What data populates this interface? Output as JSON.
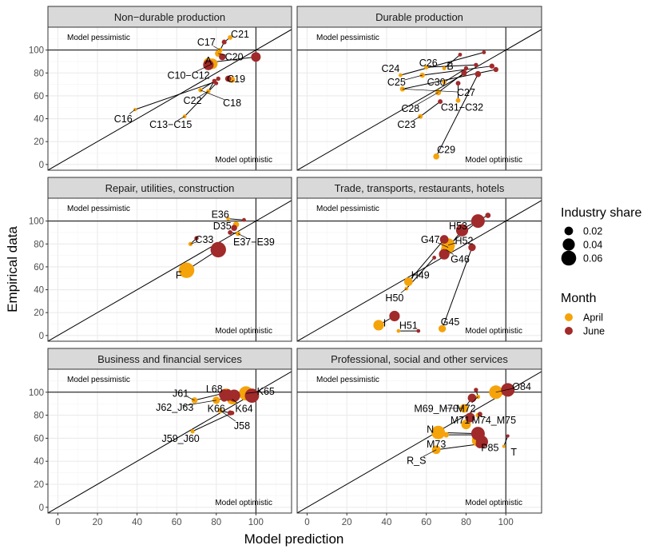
{
  "chart_data": {
    "type": "scatter",
    "subtype": "faceted dumbbell scatter (April vs June)",
    "xlabel": "Model prediction",
    "ylabel": "Empirical data",
    "xlim": [
      -5,
      118
    ],
    "ylim": [
      -5,
      120
    ],
    "xticks": [
      0,
      20,
      40,
      60,
      80,
      100
    ],
    "yticks": [
      0,
      20,
      40,
      60,
      80,
      100
    ],
    "reference_lines": {
      "diagonal": "y = x",
      "horizontal": 100,
      "vertical": 100
    },
    "region_labels": {
      "pessimistic": "Model pessimistic",
      "optimistic": "Model optimistic"
    },
    "legend": {
      "size_title": "Industry share",
      "size_entries": [
        {
          "label": "0.02",
          "share": 0.02
        },
        {
          "label": "0.04",
          "share": 0.04
        },
        {
          "label": "0.06",
          "share": 0.06
        }
      ],
      "color_title": "Month",
      "color_entries": [
        {
          "label": "April",
          "color": "#f5a30a"
        },
        {
          "label": "June",
          "color": "#a12a2a"
        }
      ]
    },
    "colors": {
      "april": "#f5a30a",
      "june": "#a12a2a",
      "strip": "#d9d9d9",
      "grid_major": "#ebebeb",
      "grid_minor": "#f5f5f5"
    },
    "facets": [
      {
        "title": "Non−durable production",
        "points": [
          {
            "label": "C21",
            "april": [
              87,
              111
            ],
            "june": [
              84,
              107
            ],
            "share": 0.006,
            "lx": 92,
            "ly": 114
          },
          {
            "label": "C17",
            "april": [
              82,
              100
            ],
            "june": [
              84,
              107
            ],
            "share": 0.006,
            "lx": 75,
            "ly": 107
          },
          {
            "label": "C20",
            "april": [
              81,
              97
            ],
            "june": [
              83,
              94
            ],
            "share": 0.012,
            "lx": 89,
            "ly": 94
          },
          {
            "label": "A",
            "april": [
              76,
              89
            ],
            "june": [
              100,
              94
            ],
            "share": 0.025,
            "lx": 76,
            "ly": 91
          },
          {
            "label": "C10−C12",
            "april": [
              78,
              88
            ],
            "june": [
              76,
              87
            ],
            "share": 0.03,
            "lx": 66,
            "ly": 78
          },
          {
            "label": "C19",
            "april": [
              88,
              74
            ],
            "june": [
              86,
              75
            ],
            "share": 0.01,
            "lx": 90,
            "ly": 75
          },
          {
            "label": "C22",
            "april": [
              76,
              64
            ],
            "june": [
              79,
              73
            ],
            "share": 0.005,
            "lx": 68,
            "ly": 56
          },
          {
            "label": "C18",
            "april": [
              72,
              65
            ],
            "june": [
              81,
              75
            ],
            "share": 0.005,
            "lx": 88,
            "ly": 54
          },
          {
            "label": "C16",
            "april": [
              39,
              48
            ],
            "june": [
              79,
              72
            ],
            "share": 0.003,
            "lx": 33,
            "ly": 40
          },
          {
            "label": "C13−C15",
            "april": [
              64,
              42
            ],
            "june": [
              80,
              71
            ],
            "share": 0.004,
            "lx": 57,
            "ly": 35
          }
        ]
      },
      {
        "title": "Durable production",
        "points": [
          {
            "label": "C26",
            "april": [
              60,
              85
            ],
            "june": [
              85,
              87
            ],
            "share": 0.005,
            "lx": 61,
            "ly": 89
          },
          {
            "label": "B",
            "april": [
              69,
              84
            ],
            "june": [
              77,
              96
            ],
            "share": 0.004,
            "lx": 72,
            "ly": 86
          },
          {
            "label": "C24",
            "april": [
              47,
              78
            ],
            "june": [
              89,
              98
            ],
            "share": 0.004,
            "lx": 42,
            "ly": 84
          },
          {
            "label": "C25",
            "april": [
              58,
              78
            ],
            "june": [
              93,
              86
            ],
            "share": 0.007,
            "lx": 45,
            "ly": 72
          },
          {
            "label": "C30",
            "april": [
              69,
              72
            ],
            "june": [
              80,
              84
            ],
            "share": 0.005,
            "lx": 65,
            "ly": 72
          },
          {
            "label": "C27",
            "april": [
              48,
              66
            ],
            "june": [
              95,
              83
            ],
            "share": 0.007,
            "lx": 80,
            "ly": 63
          },
          {
            "label": "C28",
            "april": [
              66,
              63
            ],
            "june": [
              79,
              80
            ],
            "share": 0.009,
            "lx": 52,
            "ly": 49
          },
          {
            "label": "C31−C32",
            "april": [
              76,
              56
            ],
            "june": [
              76,
              71
            ],
            "share": 0.006,
            "lx": 78,
            "ly": 50
          },
          {
            "label": "C23",
            "april": [
              57,
              42
            ],
            "june": [
              67,
              55
            ],
            "share": 0.006,
            "lx": 50,
            "ly": 35
          },
          {
            "label": "C29",
            "april": [
              65,
              7
            ],
            "june": [
              86,
              79
            ],
            "share": 0.01,
            "lx": 70,
            "ly": 13
          }
        ]
      },
      {
        "title": "Repair, utilities, construction",
        "points": [
          {
            "label": "E36",
            "april": [
              86,
              102
            ],
            "june": [
              94,
              101
            ],
            "share": 0.004,
            "lx": 82,
            "ly": 106
          },
          {
            "label": "D35",
            "april": [
              90,
              97
            ],
            "june": [
              89,
              94
            ],
            "share": 0.01,
            "lx": 83,
            "ly": 96
          },
          {
            "label": "E37−E39",
            "april": [
              91,
              89
            ],
            "june": [
              87,
              90
            ],
            "share": 0.006,
            "lx": 99,
            "ly": 82
          },
          {
            "label": "C33",
            "april": [
              67,
              80
            ],
            "june": [
              70,
              85
            ],
            "share": 0.005,
            "lx": 74,
            "ly": 84
          },
          {
            "label": "F",
            "april": [
              65,
              57
            ],
            "june": [
              81,
              75
            ],
            "share": 0.065,
            "lx": 61,
            "ly": 53
          }
        ]
      },
      {
        "title": "Trade, transports, restaurants, hotels",
        "points": [
          {
            "label": "H53",
            "april": [
              78,
              93
            ],
            "june": [
              91,
              105
            ],
            "share": 0.008,
            "lx": 76,
            "ly": 96
          },
          {
            "label": "G47",
            "april": [
              71,
              77
            ],
            "june": [
              78,
              92
            ],
            "share": 0.04,
            "lx": 62,
            "ly": 84
          },
          {
            "label": "H52",
            "april": [
              71,
              79
            ],
            "june": [
              86,
              100
            ],
            "share": 0.05,
            "lx": 79,
            "ly": 83
          },
          {
            "label": "G46",
            "april": [
              70,
              75
            ],
            "june": [
              69,
              71
            ],
            "share": 0.03,
            "lx": 77,
            "ly": 67
          },
          {
            "label": "H49",
            "april": [
              51,
              47
            ],
            "june": [
              69,
              84
            ],
            "share": 0.02,
            "lx": 57,
            "ly": 53
          },
          {
            "label": "H50",
            "april": [
              50,
              41
            ],
            "june": [
              64,
              68
            ],
            "share": 0.004,
            "lx": 44,
            "ly": 33
          },
          {
            "label": "I",
            "april": [
              36,
              9
            ],
            "june": [
              44,
              17
            ],
            "share": 0.03,
            "lx": 39,
            "ly": 11
          },
          {
            "label": "H51",
            "april": [
              46,
              4
            ],
            "june": [
              56,
              4
            ],
            "share": 0.004,
            "lx": 51,
            "ly": 9
          },
          {
            "label": "G45",
            "april": [
              68,
              6
            ],
            "june": [
              83,
              77
            ],
            "share": 0.015,
            "lx": 72,
            "ly": 12
          }
        ]
      },
      {
        "title": "Business and financial services",
        "points": [
          {
            "label": "K65",
            "april": [
              95,
              99
            ],
            "june": [
              98,
              97
            ],
            "share": 0.055,
            "lx": 105,
            "ly": 101
          },
          {
            "label": "L68",
            "april": [
              85,
              98
            ],
            "june": [
              89,
              97
            ],
            "share": 0.04,
            "lx": 79,
            "ly": 103
          },
          {
            "label": "J61",
            "april": [
              69,
              93
            ],
            "june": [
              86,
              100
            ],
            "share": 0.01,
            "lx": 62,
            "ly": 99
          },
          {
            "label": "K64",
            "april": [
              88,
              94
            ],
            "june": [
              84,
              98
            ],
            "share": 0.03,
            "lx": 94,
            "ly": 86
          },
          {
            "label": "J62_J63",
            "april": [
              80,
              93
            ],
            "june": [
              84,
              95
            ],
            "share": 0.015,
            "lx": 59,
            "ly": 87
          },
          {
            "label": "K66",
            "april": [
              84,
              95
            ],
            "june": [
              86,
              95
            ],
            "share": 0.01,
            "lx": 80,
            "ly": 86
          },
          {
            "label": "J58",
            "april": [
              82,
              84
            ],
            "june": [
              87,
              82
            ],
            "share": 0.007,
            "lx": 93,
            "ly": 71
          },
          {
            "label": "J59_J60",
            "april": [
              68,
              66
            ],
            "june": [
              88,
              82
            ],
            "share": 0.005,
            "lx": 62,
            "ly": 60
          }
        ]
      },
      {
        "title": "Professional, social and other services",
        "points": [
          {
            "label": "O84",
            "april": [
              95,
              100
            ],
            "june": [
              101,
              102
            ],
            "share": 0.05,
            "lx": 108,
            "ly": 105
          },
          {
            "label": "M69_M70",
            "april": [
              79,
              86
            ],
            "june": [
              83,
              95
            ],
            "share": 0.02,
            "lx": 65,
            "ly": 86
          },
          {
            "label": "M72",
            "april": [
              86,
              96
            ],
            "june": [
              85,
              102
            ],
            "share": 0.005,
            "lx": 80,
            "ly": 86
          },
          {
            "label": "M71",
            "april": [
              80,
              72
            ],
            "june": [
              82,
              78
            ],
            "share": 0.025,
            "lx": 77,
            "ly": 76
          },
          {
            "label": "M74_M75",
            "april": [
              86,
              80
            ],
            "june": [
              87,
              81
            ],
            "share": 0.006,
            "lx": 94,
            "ly": 76
          },
          {
            "label": "N",
            "april": [
              66,
              65
            ],
            "june": [
              86,
              64
            ],
            "share": 0.05,
            "lx": 62,
            "ly": 68
          },
          {
            "label": "M73",
            "april": [
              70,
              63
            ],
            "june": [
              88,
              63
            ],
            "share": 0.008,
            "lx": 65,
            "ly": 55
          },
          {
            "label": "P85",
            "april": [
              86,
              58
            ],
            "june": [
              88,
              57
            ],
            "share": 0.04,
            "lx": 92,
            "ly": 52
          },
          {
            "label": "R_S",
            "april": [
              65,
              50
            ],
            "june": [
              87,
              55
            ],
            "share": 0.02,
            "lx": 55,
            "ly": 41
          },
          {
            "label": "T",
            "april": [
              99,
              53
            ],
            "june": [
              101,
              62
            ],
            "share": 0.003,
            "lx": 104,
            "ly": 48
          }
        ]
      }
    ]
  }
}
